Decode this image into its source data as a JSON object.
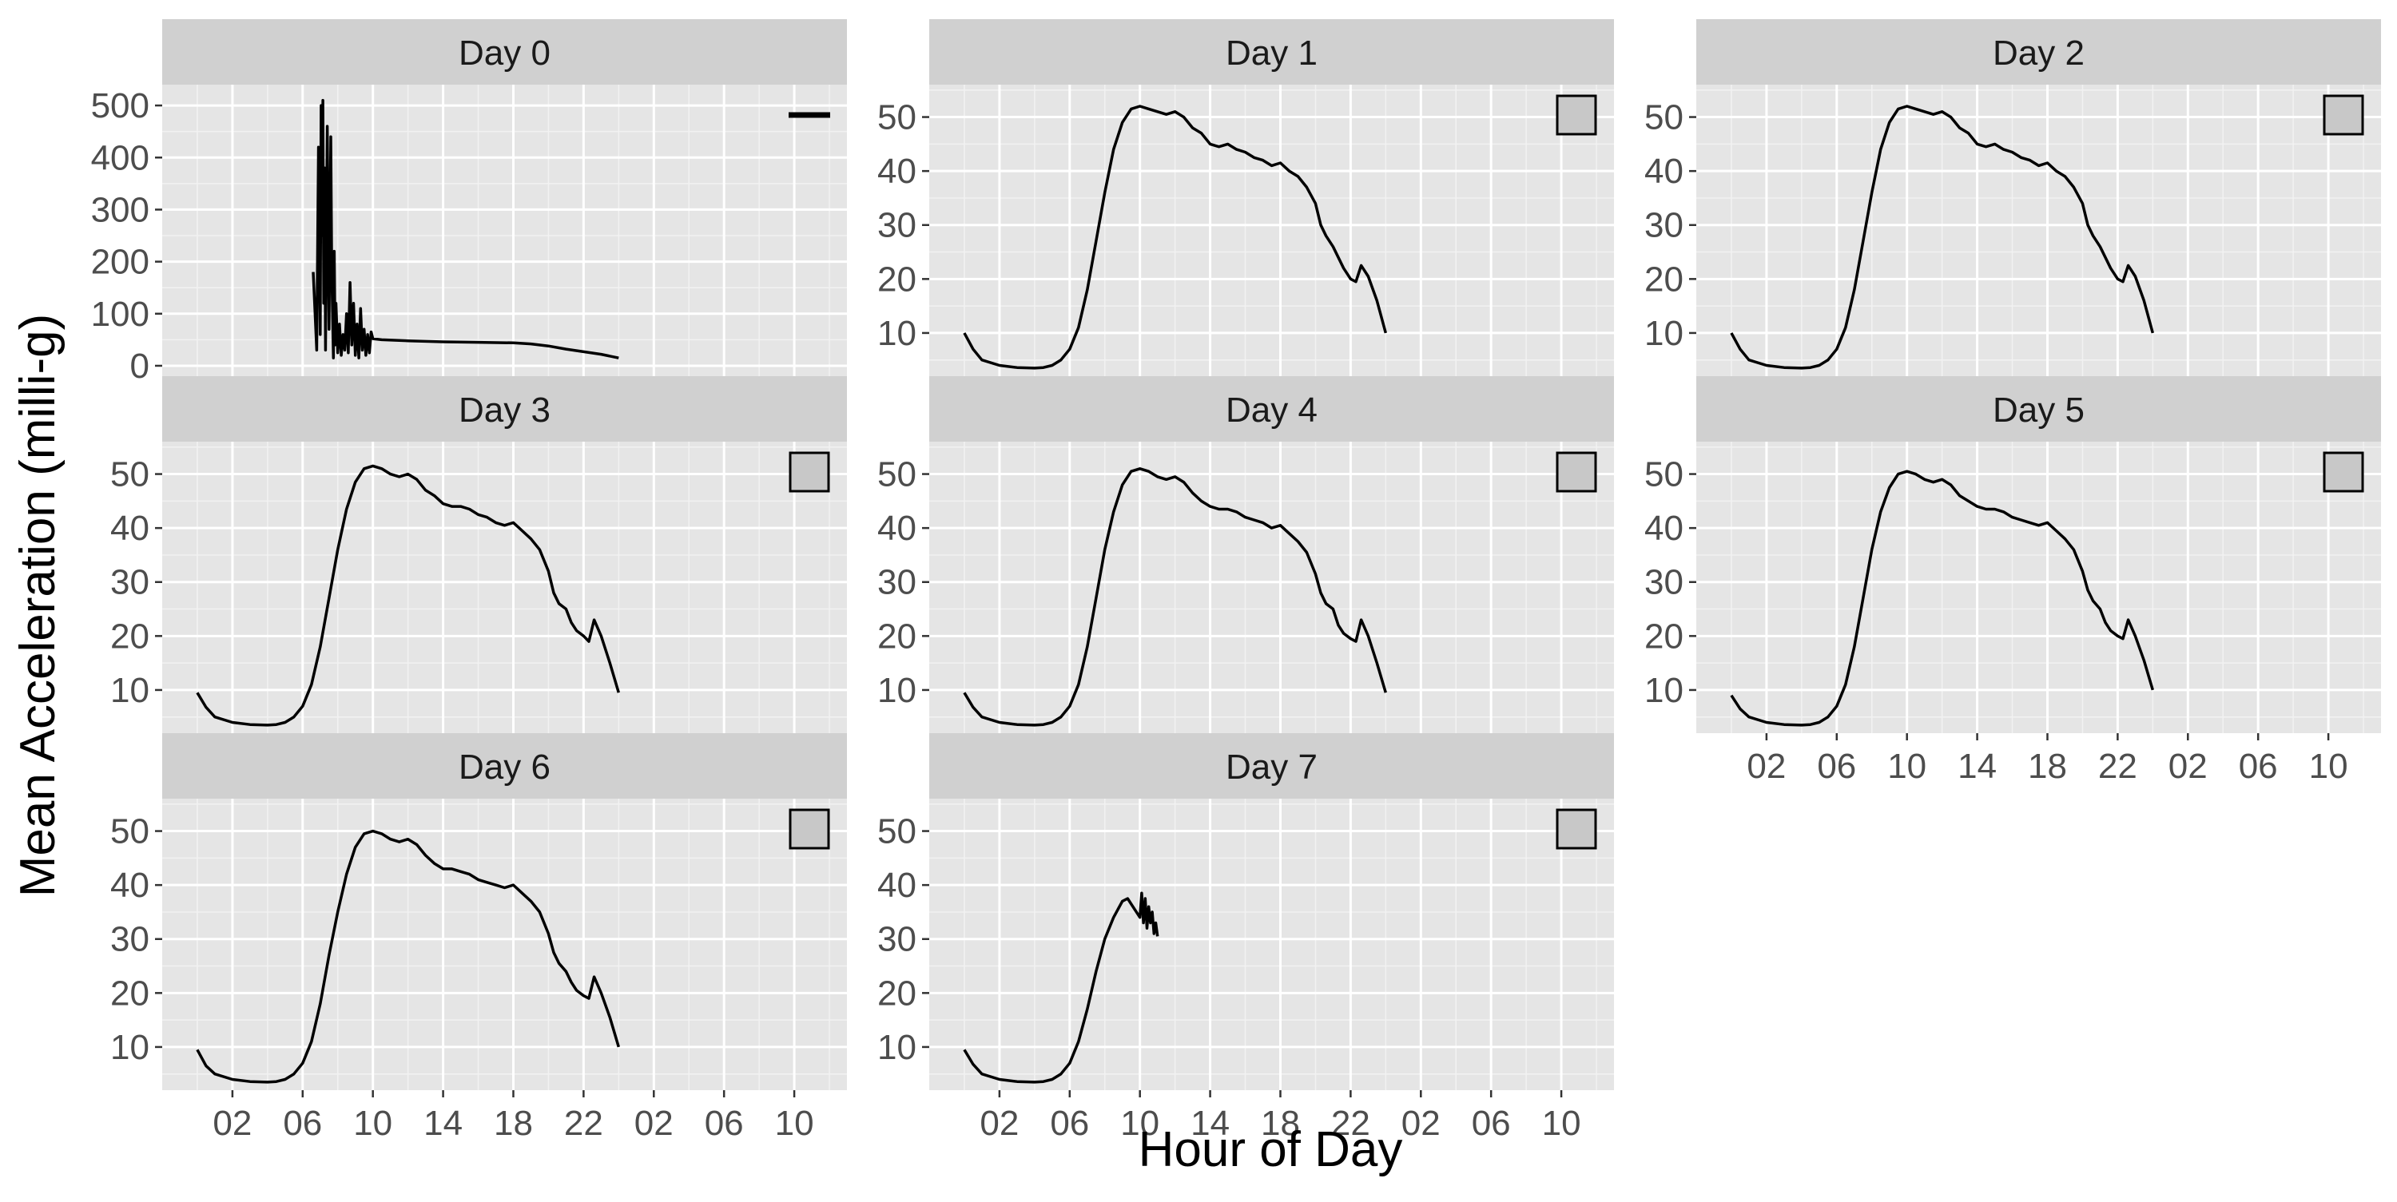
{
  "chart_data": {
    "type": "line",
    "xlabel": "Hour of Day",
    "ylabel": "Mean Acceleration (milli-g)",
    "x_tick_labels": [
      "02",
      "06",
      "10",
      "14",
      "18",
      "22",
      "02",
      "06",
      "10"
    ],
    "x_tick_hours": [
      2,
      6,
      10,
      14,
      18,
      22,
      26,
      30,
      34
    ],
    "xlim": [
      -2,
      37
    ],
    "grid": true,
    "panel_background": "#e5e5e5",
    "strip_background": "#d0d0d0",
    "line_color": "#000000",
    "panels": [
      {
        "strip": "Day 0",
        "ylim": [
          -20,
          540
        ],
        "y_ticks": [
          0,
          100,
          200,
          300,
          400,
          500
        ],
        "legend_key": "line",
        "x": [
          6.6,
          6.8,
          6.9,
          7.0,
          7.05,
          7.1,
          7.15,
          7.2,
          7.25,
          7.3,
          7.4,
          7.5,
          7.6,
          7.65,
          7.7,
          7.75,
          7.8,
          7.85,
          7.9,
          8.0,
          8.1,
          8.2,
          8.3,
          8.4,
          8.5,
          8.6,
          8.7,
          8.8,
          8.9,
          9.0,
          9.1,
          9.2,
          9.3,
          9.4,
          9.5,
          9.6,
          9.7,
          9.8,
          9.9,
          10.0,
          10.5,
          12.0,
          14.0,
          16.0,
          18.0,
          19.0,
          20.0,
          21.0,
          22.0,
          23.0,
          24.0
        ],
        "y": [
          180,
          30,
          420,
          60,
          500,
          250,
          510,
          120,
          380,
          30,
          460,
          70,
          440,
          200,
          100,
          15,
          220,
          40,
          120,
          25,
          80,
          20,
          60,
          30,
          100,
          25,
          160,
          40,
          120,
          20,
          80,
          15,
          110,
          30,
          70,
          20,
          60,
          25,
          65,
          52,
          50,
          48,
          46,
          45,
          44,
          42,
          38,
          32,
          27,
          22,
          15
        ]
      },
      {
        "strip": "Day 1",
        "ylim": [
          2,
          56
        ],
        "y_ticks": [
          10,
          20,
          30,
          40,
          50
        ],
        "legend_key": "box",
        "x": [
          0.0,
          0.5,
          1.0,
          2.0,
          3.0,
          4.0,
          4.5,
          5.0,
          5.5,
          6.0,
          6.5,
          7.0,
          7.5,
          8.0,
          8.5,
          9.0,
          9.5,
          10.0,
          10.5,
          11.0,
          11.5,
          12.0,
          12.5,
          13.0,
          13.5,
          14.0,
          14.5,
          15.0,
          15.5,
          16.0,
          16.5,
          17.0,
          17.5,
          18.0,
          18.5,
          19.0,
          19.5,
          20.0,
          20.3,
          20.6,
          21.0,
          21.3,
          21.6,
          22.0,
          22.3,
          22.6,
          23.0,
          23.5,
          24.0
        ],
        "y": [
          10.0,
          7.0,
          5.0,
          4.0,
          3.6,
          3.5,
          3.6,
          4.0,
          5.0,
          7.0,
          11.0,
          18.0,
          27.0,
          36.0,
          44.0,
          49.0,
          51.5,
          52.0,
          51.5,
          51.0,
          50.5,
          51.0,
          50.0,
          48.0,
          47.0,
          45.0,
          44.5,
          45.0,
          44.0,
          43.5,
          42.5,
          42.0,
          41.0,
          41.5,
          40.0,
          39.0,
          37.0,
          34.0,
          30.0,
          28.0,
          26.0,
          24.0,
          22.0,
          20.0,
          19.5,
          22.5,
          20.5,
          16.0,
          10.0
        ]
      },
      {
        "strip": "Day 2",
        "ylim": [
          2,
          56
        ],
        "y_ticks": [
          10,
          20,
          30,
          40,
          50
        ],
        "legend_key": "box",
        "x": [
          0.0,
          0.5,
          1.0,
          2.0,
          3.0,
          4.0,
          4.5,
          5.0,
          5.5,
          6.0,
          6.5,
          7.0,
          7.5,
          8.0,
          8.5,
          9.0,
          9.5,
          10.0,
          10.5,
          11.0,
          11.5,
          12.0,
          12.5,
          13.0,
          13.5,
          14.0,
          14.5,
          15.0,
          15.5,
          16.0,
          16.5,
          17.0,
          17.5,
          18.0,
          18.5,
          19.0,
          19.5,
          20.0,
          20.3,
          20.6,
          21.0,
          21.3,
          21.6,
          22.0,
          22.3,
          22.6,
          23.0,
          23.5,
          24.0
        ],
        "y": [
          10.0,
          7.0,
          5.0,
          4.0,
          3.6,
          3.5,
          3.6,
          4.0,
          5.0,
          7.0,
          11.0,
          18.0,
          27.0,
          36.0,
          44.0,
          49.0,
          51.5,
          52.0,
          51.5,
          51.0,
          50.5,
          51.0,
          50.0,
          48.0,
          47.0,
          45.0,
          44.5,
          45.0,
          44.0,
          43.5,
          42.5,
          42.0,
          41.0,
          41.5,
          40.0,
          39.0,
          37.0,
          34.0,
          30.0,
          28.0,
          26.0,
          24.0,
          22.0,
          20.0,
          19.5,
          22.5,
          20.5,
          16.0,
          10.0
        ]
      },
      {
        "strip": "Day 3",
        "ylim": [
          2,
          56
        ],
        "y_ticks": [
          10,
          20,
          30,
          40,
          50
        ],
        "legend_key": "box",
        "x": [
          0.0,
          0.5,
          1.0,
          2.0,
          3.0,
          4.0,
          4.5,
          5.0,
          5.5,
          6.0,
          6.5,
          7.0,
          7.5,
          8.0,
          8.5,
          9.0,
          9.5,
          10.0,
          10.5,
          11.0,
          11.5,
          12.0,
          12.5,
          13.0,
          13.5,
          14.0,
          14.5,
          15.0,
          15.5,
          16.0,
          16.5,
          17.0,
          17.5,
          18.0,
          18.5,
          19.0,
          19.5,
          20.0,
          20.3,
          20.6,
          21.0,
          21.3,
          21.6,
          22.0,
          22.3,
          22.6,
          23.0,
          23.5,
          24.0
        ],
        "y": [
          9.5,
          6.8,
          5.0,
          4.0,
          3.6,
          3.5,
          3.6,
          4.0,
          5.0,
          7.0,
          11.0,
          18.0,
          27.0,
          36.0,
          43.5,
          48.5,
          51.0,
          51.5,
          51.0,
          50.0,
          49.5,
          50.0,
          49.0,
          47.0,
          46.0,
          44.5,
          44.0,
          44.0,
          43.5,
          42.5,
          42.0,
          41.0,
          40.5,
          41.0,
          39.5,
          38.0,
          36.0,
          32.0,
          28.0,
          26.0,
          25.0,
          22.5,
          21.0,
          20.0,
          19.0,
          23.0,
          20.0,
          15.0,
          9.5
        ]
      },
      {
        "strip": "Day 4",
        "ylim": [
          2,
          56
        ],
        "y_ticks": [
          10,
          20,
          30,
          40,
          50
        ],
        "legend_key": "box",
        "x": [
          0.0,
          0.5,
          1.0,
          2.0,
          3.0,
          4.0,
          4.5,
          5.0,
          5.5,
          6.0,
          6.5,
          7.0,
          7.5,
          8.0,
          8.5,
          9.0,
          9.5,
          10.0,
          10.5,
          11.0,
          11.5,
          12.0,
          12.5,
          13.0,
          13.5,
          14.0,
          14.5,
          15.0,
          15.5,
          16.0,
          16.5,
          17.0,
          17.5,
          18.0,
          18.5,
          19.0,
          19.5,
          20.0,
          20.3,
          20.6,
          21.0,
          21.3,
          21.6,
          22.0,
          22.3,
          22.6,
          23.0,
          23.5,
          24.0
        ],
        "y": [
          9.5,
          6.8,
          5.0,
          4.0,
          3.6,
          3.5,
          3.6,
          4.0,
          5.0,
          7.0,
          11.0,
          18.0,
          27.0,
          36.0,
          43.0,
          48.0,
          50.5,
          51.0,
          50.5,
          49.5,
          49.0,
          49.5,
          48.5,
          46.5,
          45.0,
          44.0,
          43.5,
          43.5,
          43.0,
          42.0,
          41.5,
          41.0,
          40.0,
          40.5,
          39.0,
          37.5,
          35.5,
          31.5,
          28.0,
          26.0,
          25.0,
          22.0,
          20.5,
          19.5,
          19.0,
          23.0,
          20.0,
          15.0,
          9.5
        ]
      },
      {
        "strip": "Day 5",
        "ylim": [
          2,
          56
        ],
        "y_ticks": [
          10,
          20,
          30,
          40,
          50
        ],
        "legend_key": "box",
        "x": [
          0.0,
          0.5,
          1.0,
          2.0,
          3.0,
          4.0,
          4.5,
          5.0,
          5.5,
          6.0,
          6.5,
          7.0,
          7.5,
          8.0,
          8.5,
          9.0,
          9.5,
          10.0,
          10.5,
          11.0,
          11.5,
          12.0,
          12.5,
          13.0,
          13.5,
          14.0,
          14.5,
          15.0,
          15.5,
          16.0,
          16.5,
          17.0,
          17.5,
          18.0,
          18.5,
          19.0,
          19.5,
          20.0,
          20.3,
          20.6,
          21.0,
          21.3,
          21.6,
          22.0,
          22.3,
          22.6,
          23.0,
          23.5,
          24.0
        ],
        "y": [
          9.0,
          6.5,
          5.0,
          4.0,
          3.6,
          3.5,
          3.6,
          4.0,
          5.0,
          7.0,
          11.0,
          18.0,
          27.0,
          36.0,
          43.0,
          47.5,
          50.0,
          50.5,
          50.0,
          49.0,
          48.5,
          49.0,
          48.0,
          46.0,
          45.0,
          44.0,
          43.5,
          43.5,
          43.0,
          42.0,
          41.5,
          41.0,
          40.5,
          41.0,
          39.5,
          38.0,
          36.0,
          32.0,
          28.5,
          26.5,
          25.0,
          22.5,
          21.0,
          20.0,
          19.5,
          23.0,
          20.0,
          15.5,
          10.0
        ]
      },
      {
        "strip": "Day 6",
        "ylim": [
          2,
          56
        ],
        "y_ticks": [
          10,
          20,
          30,
          40,
          50
        ],
        "legend_key": "box",
        "x": [
          0.0,
          0.5,
          1.0,
          2.0,
          3.0,
          4.0,
          4.5,
          5.0,
          5.5,
          6.0,
          6.5,
          7.0,
          7.5,
          8.0,
          8.5,
          9.0,
          9.5,
          10.0,
          10.5,
          11.0,
          11.5,
          12.0,
          12.5,
          13.0,
          13.5,
          14.0,
          14.5,
          15.0,
          15.5,
          16.0,
          16.5,
          17.0,
          17.5,
          18.0,
          18.5,
          19.0,
          19.5,
          20.0,
          20.3,
          20.6,
          21.0,
          21.3,
          21.6,
          22.0,
          22.3,
          22.6,
          23.0,
          23.5,
          24.0
        ],
        "y": [
          9.5,
          6.5,
          5.0,
          4.0,
          3.6,
          3.5,
          3.6,
          4.0,
          5.0,
          7.0,
          11.0,
          18.0,
          27.0,
          35.0,
          42.0,
          47.0,
          49.5,
          50.0,
          49.5,
          48.5,
          48.0,
          48.5,
          47.5,
          45.5,
          44.0,
          43.0,
          43.0,
          42.5,
          42.0,
          41.0,
          40.5,
          40.0,
          39.5,
          40.0,
          38.5,
          37.0,
          35.0,
          31.0,
          27.5,
          25.5,
          24.0,
          22.0,
          20.5,
          19.5,
          19.0,
          23.0,
          20.0,
          15.5,
          10.0
        ]
      },
      {
        "strip": "Day 7",
        "ylim": [
          2,
          56
        ],
        "y_ticks": [
          10,
          20,
          30,
          40,
          50
        ],
        "legend_key": "box",
        "x": [
          0.0,
          0.5,
          1.0,
          2.0,
          3.0,
          4.0,
          4.5,
          5.0,
          5.5,
          6.0,
          6.5,
          7.0,
          7.5,
          8.0,
          8.5,
          9.0,
          9.3,
          9.6,
          9.8,
          10.0,
          10.1,
          10.2,
          10.3,
          10.4,
          10.5,
          10.6,
          10.7,
          10.8,
          10.9,
          11.0
        ],
        "y": [
          9.5,
          6.8,
          5.0,
          4.0,
          3.6,
          3.5,
          3.6,
          4.0,
          5.0,
          7.0,
          11.0,
          17.0,
          24.0,
          30.0,
          34.0,
          37.0,
          37.5,
          36.0,
          35.0,
          34.0,
          38.5,
          33.0,
          37.5,
          32.0,
          36.0,
          33.0,
          35.0,
          31.0,
          33.0,
          30.5
        ]
      }
    ]
  }
}
